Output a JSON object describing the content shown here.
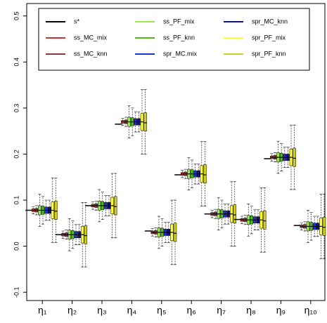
{
  "chart_data": {
    "type": "boxplot",
    "categories": [
      "η₁",
      "η₂",
      "η₃",
      "η₄",
      "η₅",
      "η₆",
      "η₇",
      "η₈",
      "η₉",
      "η₁₀"
    ],
    "ylim": [
      -0.118,
      0.527
    ],
    "yticks": [
      -0.1,
      {
        "value": 0,
        "label": "0.0"
      },
      0.1,
      0.2,
      0.3,
      0.4,
      0.5
    ],
    "series": [
      {
        "name": "s*",
        "color": "#000000",
        "values": [
          0.078,
          0.025,
          0.088,
          0.265,
          0.033,
          0.155,
          0.07,
          0.058,
          0.19,
          0.045
        ]
      },
      {
        "name": "ss_MC_mix",
        "color": "#cc3333",
        "values": [
          [
            0.07,
            0.075,
            0.078,
            0.081,
            0.086
          ],
          [
            0.017,
            0.022,
            0.025,
            0.028,
            0.033
          ],
          [
            0.08,
            0.085,
            0.088,
            0.091,
            0.096
          ],
          [
            0.262,
            0.267,
            0.27,
            0.273,
            0.278
          ],
          [
            0.022,
            0.027,
            0.03,
            0.033,
            0.038
          ],
          [
            0.149,
            0.154,
            0.157,
            0.16,
            0.165
          ],
          [
            0.062,
            0.067,
            0.07,
            0.073,
            0.078
          ],
          [
            0.049,
            0.054,
            0.057,
            0.06,
            0.065
          ],
          [
            0.185,
            0.19,
            0.193,
            0.196,
            0.201
          ],
          [
            0.035,
            0.04,
            0.043,
            0.046,
            0.051
          ]
        ]
      },
      {
        "name": "ss_MC_knn",
        "color": "#8b3a3a",
        "values": [
          [
            0.068,
            0.074,
            0.078,
            0.082,
            0.088
          ],
          [
            0.015,
            0.021,
            0.025,
            0.029,
            0.035
          ],
          [
            0.078,
            0.084,
            0.088,
            0.092,
            0.098
          ],
          [
            0.26,
            0.266,
            0.27,
            0.274,
            0.28
          ],
          [
            0.02,
            0.026,
            0.03,
            0.034,
            0.04
          ],
          [
            0.147,
            0.153,
            0.157,
            0.161,
            0.167
          ],
          [
            0.06,
            0.066,
            0.07,
            0.074,
            0.08
          ],
          [
            0.047,
            0.053,
            0.057,
            0.061,
            0.067
          ],
          [
            0.183,
            0.189,
            0.193,
            0.197,
            0.203
          ],
          [
            0.033,
            0.039,
            0.043,
            0.047,
            0.053
          ]
        ]
      },
      {
        "name": "ss_PF_mix",
        "color": "#99e64d",
        "values": [
          [
            0.043,
            0.068,
            0.078,
            0.088,
            0.113
          ],
          [
            -0.01,
            0.015,
            0.025,
            0.035,
            0.06
          ],
          [
            0.053,
            0.078,
            0.088,
            0.098,
            0.123
          ],
          [
            0.235,
            0.26,
            0.27,
            0.28,
            0.305
          ],
          [
            -0.005,
            0.02,
            0.03,
            0.04,
            0.065
          ],
          [
            0.122,
            0.147,
            0.157,
            0.167,
            0.192
          ],
          [
            0.035,
            0.06,
            0.07,
            0.08,
            0.105
          ],
          [
            0.022,
            0.047,
            0.057,
            0.067,
            0.092
          ],
          [
            0.158,
            0.183,
            0.193,
            0.203,
            0.228
          ],
          [
            0.008,
            0.033,
            0.043,
            0.053,
            0.078
          ]
        ]
      },
      {
        "name": "ss_PF_knn",
        "color": "#4dbb1a",
        "values": [
          [
            0.048,
            0.069,
            0.078,
            0.087,
            0.108
          ],
          [
            -0.005,
            0.016,
            0.025,
            0.034,
            0.055
          ],
          [
            0.058,
            0.079,
            0.088,
            0.097,
            0.118
          ],
          [
            0.24,
            0.261,
            0.27,
            0.279,
            0.3
          ],
          [
            0.0,
            0.021,
            0.03,
            0.039,
            0.06
          ],
          [
            0.127,
            0.148,
            0.157,
            0.166,
            0.187
          ],
          [
            0.04,
            0.061,
            0.07,
            0.079,
            0.1
          ],
          [
            0.027,
            0.048,
            0.057,
            0.066,
            0.087
          ],
          [
            0.163,
            0.184,
            0.193,
            0.202,
            0.223
          ],
          [
            0.013,
            0.034,
            0.043,
            0.052,
            0.073
          ]
        ]
      },
      {
        "name": "spr_MC.mix",
        "color": "#2233cc",
        "values": [
          [
            0.056,
            0.071,
            0.078,
            0.085,
            0.1
          ],
          [
            0.003,
            0.018,
            0.025,
            0.032,
            0.047
          ],
          [
            0.066,
            0.081,
            0.088,
            0.095,
            0.11
          ],
          [
            0.248,
            0.263,
            0.27,
            0.277,
            0.292
          ],
          [
            0.008,
            0.023,
            0.03,
            0.037,
            0.052
          ],
          [
            0.135,
            0.15,
            0.157,
            0.164,
            0.179
          ],
          [
            0.048,
            0.063,
            0.07,
            0.077,
            0.092
          ],
          [
            0.035,
            0.05,
            0.057,
            0.064,
            0.079
          ],
          [
            0.171,
            0.186,
            0.193,
            0.2,
            0.215
          ],
          [
            0.021,
            0.036,
            0.043,
            0.05,
            0.065
          ]
        ]
      },
      {
        "name": "spr_MC_knn",
        "color": "#101080",
        "values": [
          [
            0.056,
            0.071,
            0.078,
            0.085,
            0.1
          ],
          [
            0.003,
            0.018,
            0.025,
            0.032,
            0.047
          ],
          [
            0.066,
            0.081,
            0.088,
            0.095,
            0.11
          ],
          [
            0.248,
            0.263,
            0.27,
            0.277,
            0.292
          ],
          [
            0.008,
            0.023,
            0.03,
            0.037,
            0.052
          ],
          [
            0.135,
            0.15,
            0.157,
            0.164,
            0.179
          ],
          [
            0.048,
            0.063,
            0.07,
            0.077,
            0.092
          ],
          [
            0.035,
            0.05,
            0.057,
            0.064,
            0.079
          ],
          [
            0.171,
            0.186,
            0.193,
            0.2,
            0.215
          ],
          [
            0.021,
            0.036,
            0.043,
            0.05,
            0.065
          ]
        ]
      },
      {
        "name": "spr_PF_mix",
        "color": "#ffff33",
        "values": [
          [
            0.008,
            0.06,
            0.078,
            0.096,
            0.148
          ],
          [
            -0.045,
            0.007,
            0.025,
            0.043,
            0.095
          ],
          [
            0.018,
            0.07,
            0.088,
            0.106,
            0.158
          ],
          [
            0.2,
            0.252,
            0.27,
            0.288,
            0.34
          ],
          [
            -0.04,
            0.012,
            0.03,
            0.048,
            0.1
          ],
          [
            0.087,
            0.139,
            0.157,
            0.175,
            0.227
          ],
          [
            0.0,
            0.052,
            0.07,
            0.088,
            0.14
          ],
          [
            -0.013,
            0.039,
            0.057,
            0.075,
            0.127
          ],
          [
            0.123,
            0.175,
            0.193,
            0.211,
            0.263
          ],
          [
            -0.027,
            0.025,
            0.043,
            0.061,
            0.113
          ]
        ]
      },
      {
        "name": "spr_PF_knn",
        "color": "#cccc22",
        "values": [
          [
            0.008,
            0.058,
            0.076,
            0.098,
            0.148
          ],
          [
            -0.045,
            0.005,
            0.023,
            0.045,
            0.095
          ],
          [
            0.018,
            0.068,
            0.086,
            0.108,
            0.158
          ],
          [
            0.2,
            0.25,
            0.268,
            0.29,
            0.34
          ],
          [
            -0.04,
            0.01,
            0.028,
            0.05,
            0.1
          ],
          [
            0.087,
            0.137,
            0.155,
            0.177,
            0.227
          ],
          [
            0.0,
            0.05,
            0.068,
            0.09,
            0.14
          ],
          [
            -0.013,
            0.037,
            0.055,
            0.077,
            0.127
          ],
          [
            0.123,
            0.173,
            0.191,
            0.213,
            0.263
          ],
          [
            -0.027,
            0.023,
            0.041,
            0.063,
            0.113
          ]
        ]
      }
    ]
  }
}
